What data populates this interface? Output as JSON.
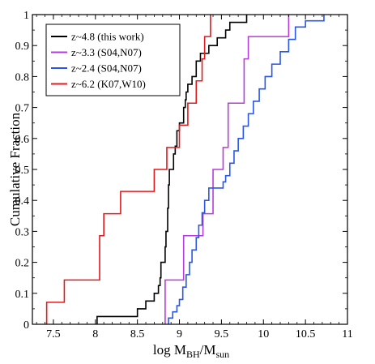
{
  "chart_data": {
    "type": "step",
    "xlabel": "log M",
    "xlabel_sub1": "BH",
    "xlabel_mid": "/M",
    "xlabel_sub2": "sun",
    "ylabel": "Cumulative Fraction",
    "xlim": [
      7.25,
      11
    ],
    "ylim": [
      0,
      1
    ],
    "xticks": [
      7.5,
      8,
      8.5,
      9,
      9.5,
      10,
      10.5,
      11
    ],
    "xtick_labels": [
      "7.5",
      "8",
      "8.5",
      "9",
      "9.5",
      "10",
      "10.5",
      "11"
    ],
    "yticks": [
      0,
      0.1,
      0.2,
      0.3,
      0.4,
      0.5,
      0.6,
      0.7,
      0.8,
      0.9,
      1
    ],
    "ytick_labels": [
      "0",
      "0.1",
      "0.2",
      "0.3",
      "0.4",
      "0.5",
      "0.6",
      "0.7",
      "0.8",
      "0.9",
      "1"
    ],
    "grid": false,
    "legend_position": "top-left",
    "series": [
      {
        "name": "z~4.8 (this work)",
        "color": "#000000",
        "points": [
          [
            8.02,
            0.0
          ],
          [
            8.02,
            0.025
          ],
          [
            8.5,
            0.025
          ],
          [
            8.5,
            0.05
          ],
          [
            8.6,
            0.05
          ],
          [
            8.6,
            0.075
          ],
          [
            8.7,
            0.075
          ],
          [
            8.7,
            0.1
          ],
          [
            8.75,
            0.1
          ],
          [
            8.75,
            0.125
          ],
          [
            8.77,
            0.125
          ],
          [
            8.77,
            0.15
          ],
          [
            8.78,
            0.15
          ],
          [
            8.78,
            0.2
          ],
          [
            8.83,
            0.2
          ],
          [
            8.83,
            0.25
          ],
          [
            8.84,
            0.25
          ],
          [
            8.84,
            0.3
          ],
          [
            8.86,
            0.3
          ],
          [
            8.86,
            0.375
          ],
          [
            8.87,
            0.375
          ],
          [
            8.87,
            0.45
          ],
          [
            8.88,
            0.45
          ],
          [
            8.88,
            0.5
          ],
          [
            8.93,
            0.5
          ],
          [
            8.93,
            0.55
          ],
          [
            8.95,
            0.55
          ],
          [
            8.95,
            0.575
          ],
          [
            8.97,
            0.575
          ],
          [
            8.97,
            0.625
          ],
          [
            9.0,
            0.625
          ],
          [
            9.0,
            0.65
          ],
          [
            9.05,
            0.65
          ],
          [
            9.05,
            0.7
          ],
          [
            9.07,
            0.7
          ],
          [
            9.07,
            0.725
          ],
          [
            9.08,
            0.725
          ],
          [
            9.08,
            0.75
          ],
          [
            9.1,
            0.75
          ],
          [
            9.1,
            0.775
          ],
          [
            9.15,
            0.775
          ],
          [
            9.15,
            0.8
          ],
          [
            9.2,
            0.8
          ],
          [
            9.2,
            0.85
          ],
          [
            9.25,
            0.85
          ],
          [
            9.25,
            0.875
          ],
          [
            9.35,
            0.875
          ],
          [
            9.35,
            0.9
          ],
          [
            9.45,
            0.9
          ],
          [
            9.45,
            0.925
          ],
          [
            9.55,
            0.925
          ],
          [
            9.55,
            0.95
          ],
          [
            9.6,
            0.95
          ],
          [
            9.6,
            0.975
          ],
          [
            9.8,
            0.975
          ],
          [
            9.8,
            1.0
          ]
        ]
      },
      {
        "name": "z~3.3 (S04,N07)",
        "color": "#b73bdc",
        "points": [
          [
            8.83,
            0.0
          ],
          [
            8.83,
            0.143
          ],
          [
            9.05,
            0.143
          ],
          [
            9.05,
            0.286
          ],
          [
            9.28,
            0.286
          ],
          [
            9.28,
            0.357
          ],
          [
            9.4,
            0.357
          ],
          [
            9.4,
            0.5
          ],
          [
            9.52,
            0.5
          ],
          [
            9.52,
            0.571
          ],
          [
            9.58,
            0.571
          ],
          [
            9.58,
            0.714
          ],
          [
            9.77,
            0.714
          ],
          [
            9.77,
            0.857
          ],
          [
            9.82,
            0.857
          ],
          [
            9.82,
            0.929
          ],
          [
            10.3,
            0.929
          ],
          [
            10.3,
            1.0
          ]
        ]
      },
      {
        "name": "z~2.4 (S04,N07)",
        "color": "#2a56e8",
        "points": [
          [
            8.87,
            0.0
          ],
          [
            8.87,
            0.02
          ],
          [
            8.92,
            0.02
          ],
          [
            8.92,
            0.04
          ],
          [
            8.97,
            0.04
          ],
          [
            8.97,
            0.06
          ],
          [
            9.0,
            0.06
          ],
          [
            9.0,
            0.08
          ],
          [
            9.04,
            0.08
          ],
          [
            9.04,
            0.12
          ],
          [
            9.08,
            0.12
          ],
          [
            9.08,
            0.16
          ],
          [
            9.12,
            0.16
          ],
          [
            9.12,
            0.2
          ],
          [
            9.15,
            0.2
          ],
          [
            9.15,
            0.24
          ],
          [
            9.2,
            0.24
          ],
          [
            9.2,
            0.28
          ],
          [
            9.23,
            0.28
          ],
          [
            9.23,
            0.32
          ],
          [
            9.27,
            0.32
          ],
          [
            9.27,
            0.36
          ],
          [
            9.3,
            0.36
          ],
          [
            9.3,
            0.4
          ],
          [
            9.35,
            0.4
          ],
          [
            9.35,
            0.44
          ],
          [
            9.52,
            0.44
          ],
          [
            9.52,
            0.46
          ],
          [
            9.55,
            0.46
          ],
          [
            9.55,
            0.48
          ],
          [
            9.6,
            0.48
          ],
          [
            9.6,
            0.52
          ],
          [
            9.65,
            0.52
          ],
          [
            9.65,
            0.56
          ],
          [
            9.7,
            0.56
          ],
          [
            9.7,
            0.6
          ],
          [
            9.76,
            0.6
          ],
          [
            9.76,
            0.64
          ],
          [
            9.82,
            0.64
          ],
          [
            9.82,
            0.68
          ],
          [
            9.88,
            0.68
          ],
          [
            9.88,
            0.72
          ],
          [
            9.95,
            0.72
          ],
          [
            9.95,
            0.76
          ],
          [
            10.02,
            0.76
          ],
          [
            10.02,
            0.8
          ],
          [
            10.1,
            0.8
          ],
          [
            10.1,
            0.84
          ],
          [
            10.2,
            0.84
          ],
          [
            10.2,
            0.88
          ],
          [
            10.3,
            0.88
          ],
          [
            10.3,
            0.92
          ],
          [
            10.38,
            0.92
          ],
          [
            10.38,
            0.96
          ],
          [
            10.5,
            0.96
          ],
          [
            10.5,
            0.98
          ],
          [
            10.72,
            0.98
          ],
          [
            10.72,
            1.0
          ]
        ]
      },
      {
        "name": "z~6.2 (K07,W10)",
        "color": "#e31a1c",
        "points": [
          [
            7.42,
            0.0
          ],
          [
            7.42,
            0.071
          ],
          [
            7.63,
            0.071
          ],
          [
            7.63,
            0.143
          ],
          [
            8.05,
            0.143
          ],
          [
            8.05,
            0.286
          ],
          [
            8.1,
            0.286
          ],
          [
            8.1,
            0.357
          ],
          [
            8.3,
            0.357
          ],
          [
            8.3,
            0.429
          ],
          [
            8.7,
            0.429
          ],
          [
            8.7,
            0.5
          ],
          [
            8.85,
            0.5
          ],
          [
            8.85,
            0.571
          ],
          [
            9.0,
            0.571
          ],
          [
            9.0,
            0.643
          ],
          [
            9.1,
            0.643
          ],
          [
            9.1,
            0.714
          ],
          [
            9.2,
            0.714
          ],
          [
            9.2,
            0.786
          ],
          [
            9.27,
            0.786
          ],
          [
            9.27,
            0.857
          ],
          [
            9.3,
            0.857
          ],
          [
            9.3,
            0.929
          ],
          [
            9.37,
            0.929
          ],
          [
            9.37,
            1.0
          ]
        ]
      }
    ]
  }
}
